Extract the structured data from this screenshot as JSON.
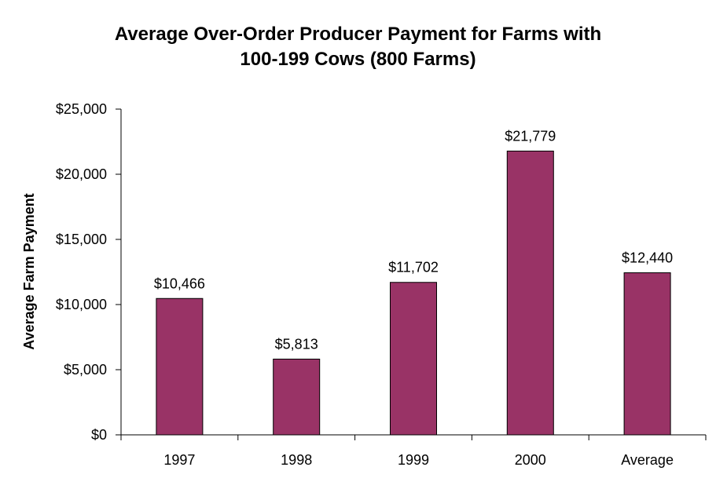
{
  "chart_data": {
    "type": "bar",
    "title_lines": [
      "Average Over-Order Producer Payment for Farms with",
      "100-199 Cows (800 Farms)"
    ],
    "xlabel": "",
    "ylabel": "Average Farm Payment",
    "categories": [
      "1997",
      "1998",
      "1999",
      "2000",
      "Average"
    ],
    "values": [
      10466,
      5813,
      11702,
      21779,
      12440
    ],
    "value_labels": [
      "$10,466",
      "$5,813",
      "$11,702",
      "$21,779",
      "$12,440"
    ],
    "ylim": [
      0,
      25000
    ],
    "y_ticks": [
      0,
      5000,
      10000,
      15000,
      20000,
      25000
    ],
    "y_tick_labels": [
      "$0",
      "$5,000",
      "$10,000",
      "$15,000",
      "$20,000",
      "$25,000"
    ],
    "grid": false,
    "legend": "none",
    "bar_color": "#993366"
  }
}
